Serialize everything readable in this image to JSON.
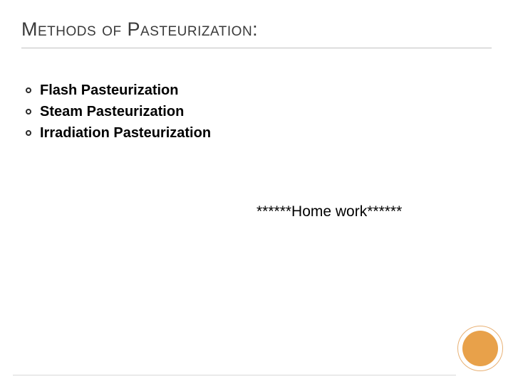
{
  "slide": {
    "title": "Methods of Pasteurization:",
    "bullets": [
      "Flash Pasteurization",
      "Steam Pasteurization",
      "Irradiation Pasteurization"
    ],
    "homework_text": "******Home work******",
    "colors": {
      "background": "#ffffff",
      "title_text": "#3a3a3a",
      "bullet_text": "#000000",
      "bullet_ring": "#2a2a2a",
      "divider": "#c0c0c0",
      "circle_outer": "#e8b073",
      "circle_inner": "#e8a14a",
      "bottom_line": "#d8d8d8"
    },
    "typography": {
      "title_fontsize": 27,
      "title_variant": "small-caps",
      "bullet_fontsize": 20,
      "bullet_fontweight": 700,
      "homework_fontsize": 21
    }
  }
}
